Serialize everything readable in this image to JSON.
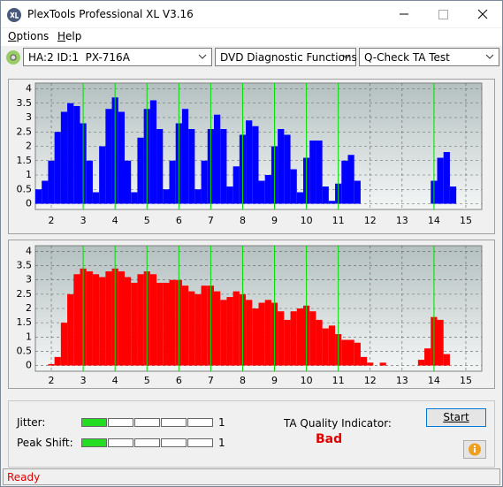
{
  "window": {
    "title": "PlexTools Professional XL V3.16"
  },
  "menu": [
    "Options",
    "Help"
  ],
  "toolbar": {
    "drive": "HA:2 ID:1  PX-716A",
    "function": "DVD Diagnostic Functions",
    "test": "Q-Check TA Test"
  },
  "charts": [
    {
      "type": "bar",
      "color": "#0000ff",
      "x": [
        1.6,
        1.8,
        2.0,
        2.2,
        2.4,
        2.6,
        2.8,
        3.0,
        3.2,
        3.4,
        3.6,
        3.8,
        4.0,
        4.2,
        4.4,
        4.6,
        4.8,
        5.0,
        5.2,
        5.4,
        5.6,
        5.8,
        6.0,
        6.2,
        6.4,
        6.6,
        6.8,
        7.0,
        7.2,
        7.4,
        7.6,
        7.8,
        8.0,
        8.2,
        8.4,
        8.6,
        8.8,
        9.0,
        9.2,
        9.4,
        9.6,
        9.8,
        10.0,
        10.2,
        10.4,
        10.6,
        10.8,
        11.0,
        11.2,
        11.4,
        11.6,
        11.8,
        12.0,
        12.2,
        12.4,
        12.6,
        12.8,
        13.0,
        13.2,
        13.4,
        13.6,
        13.8,
        14.0,
        14.2,
        14.4,
        14.6,
        14.8,
        15.0,
        15.2,
        15.4
      ],
      "values": [
        0.5,
        0.8,
        1.5,
        2.5,
        3.2,
        3.5,
        3.4,
        2.8,
        1.5,
        0.4,
        2.0,
        3.3,
        3.7,
        3.2,
        1.5,
        0.4,
        2.3,
        3.3,
        3.6,
        2.6,
        0.5,
        1.5,
        2.8,
        3.3,
        2.6,
        0.5,
        1.5,
        2.6,
        3.1,
        2.6,
        0.6,
        1.3,
        2.4,
        2.9,
        2.7,
        0.8,
        1.0,
        2.0,
        2.6,
        2.4,
        1.2,
        0.4,
        1.6,
        2.2,
        2.2,
        0.6,
        0.1,
        0.7,
        1.5,
        1.7,
        0.8,
        0,
        0,
        0,
        0,
        0,
        0,
        0,
        0,
        0,
        0,
        0,
        0.8,
        1.6,
        1.8,
        0.6,
        0,
        0,
        0,
        0
      ],
      "xlim": [
        1.5,
        15.5
      ],
      "xticks": [
        2,
        3,
        4,
        5,
        6,
        7,
        8,
        9,
        10,
        11,
        12,
        13,
        14,
        15
      ],
      "ylim": [
        -0.2,
        4.2
      ],
      "yticks": [
        0,
        0.5,
        1,
        1.5,
        2,
        2.5,
        3,
        3.5,
        4
      ],
      "marker_lines": [
        3,
        4,
        5,
        6,
        7,
        8,
        9,
        10,
        11,
        14
      ],
      "marker_color": "#00e000",
      "grid": true
    },
    {
      "type": "bar",
      "color": "#ff0000",
      "x": [
        1.6,
        1.8,
        2.0,
        2.2,
        2.4,
        2.6,
        2.8,
        3.0,
        3.2,
        3.4,
        3.6,
        3.8,
        4.0,
        4.2,
        4.4,
        4.6,
        4.8,
        5.0,
        5.2,
        5.4,
        5.6,
        5.8,
        6.0,
        6.2,
        6.4,
        6.6,
        6.8,
        7.0,
        7.2,
        7.4,
        7.6,
        7.8,
        8.0,
        8.2,
        8.4,
        8.6,
        8.8,
        9.0,
        9.2,
        9.4,
        9.6,
        9.8,
        10.0,
        10.2,
        10.4,
        10.6,
        10.8,
        11.0,
        11.2,
        11.4,
        11.6,
        11.8,
        12.0,
        12.2,
        12.4,
        12.6,
        12.8,
        13.0,
        13.2,
        13.4,
        13.6,
        13.8,
        14.0,
        14.2,
        14.4,
        14.6,
        14.8,
        15.0,
        15.2,
        15.4
      ],
      "values": [
        0,
        0,
        0.05,
        0.3,
        1.5,
        2.5,
        3.2,
        3.4,
        3.3,
        3.2,
        3.1,
        3.3,
        3.4,
        3.3,
        3.1,
        2.9,
        3.2,
        3.3,
        3.2,
        2.9,
        2.9,
        3.0,
        3.0,
        2.8,
        2.6,
        2.5,
        2.8,
        2.8,
        2.6,
        2.3,
        2.4,
        2.6,
        2.5,
        2.3,
        2.0,
        2.2,
        2.3,
        2.2,
        1.9,
        1.6,
        1.9,
        2.0,
        2.1,
        1.9,
        1.6,
        1.3,
        1.4,
        1.1,
        0.9,
        0.9,
        0.8,
        0.3,
        0.1,
        0,
        0.1,
        0,
        0,
        0,
        0,
        0,
        0.2,
        0.6,
        1.7,
        1.6,
        0.4,
        0,
        0,
        0,
        0,
        0
      ],
      "xlim": [
        1.5,
        15.5
      ],
      "xticks": [
        2,
        3,
        4,
        5,
        6,
        7,
        8,
        9,
        10,
        11,
        12,
        13,
        14,
        15
      ],
      "ylim": [
        -0.2,
        4.2
      ],
      "yticks": [
        0,
        0.5,
        1,
        1.5,
        2,
        2.5,
        3,
        3.5,
        4
      ],
      "marker_lines": [
        3,
        4,
        5,
        6,
        7,
        8,
        9,
        10,
        11,
        14
      ],
      "marker_color": "#00e000",
      "grid": true
    }
  ],
  "results": {
    "jitter": {
      "label": "Jitter:",
      "value": 1
    },
    "peak_shift": {
      "label": "Peak Shift:",
      "value": 1
    }
  },
  "ta_quality": {
    "label": "TA Quality Indicator:",
    "value": "Bad"
  },
  "buttons": {
    "start": "Start"
  },
  "status": "Ready"
}
